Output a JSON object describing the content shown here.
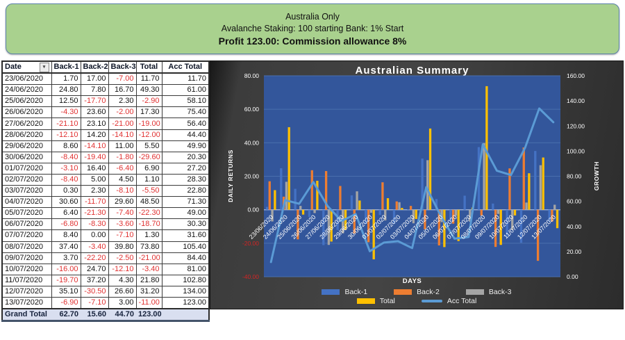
{
  "banner": {
    "line1": "Australia Only",
    "line2": "Avalanche Staking: 100 starting Bank: 1% Start",
    "line3": "Profit 123.00:  Commission allowance 8%"
  },
  "table": {
    "columns": [
      "Date",
      "Back-1",
      "Back-2",
      "Back-3",
      "Total",
      "Acc Total"
    ],
    "rows": [
      [
        "23/06/2020",
        "1.70",
        "17.00",
        "-7.00",
        "11.70",
        "11.70"
      ],
      [
        "24/06/2020",
        "24.80",
        "7.80",
        "16.70",
        "49.30",
        "61.00"
      ],
      [
        "25/06/2020",
        "12.50",
        "-17.70",
        "2.30",
        "-2.90",
        "58.10"
      ],
      [
        "26/06/2020",
        "-4.30",
        "23.60",
        "-2.00",
        "17.30",
        "75.40"
      ],
      [
        "27/06/2020",
        "-21.10",
        "23.10",
        "-21.00",
        "-19.00",
        "56.40"
      ],
      [
        "28/06/2020",
        "-12.10",
        "14.20",
        "-14.10",
        "-12.00",
        "44.40"
      ],
      [
        "29/06/2020",
        "8.60",
        "-14.10",
        "11.00",
        "5.50",
        "49.90"
      ],
      [
        "30/06/2020",
        "-8.40",
        "-19.40",
        "-1.80",
        "-29.60",
        "20.30"
      ],
      [
        "01/07/2020",
        "-3.10",
        "16.40",
        "-6.40",
        "6.90",
        "27.20"
      ],
      [
        "02/07/2020",
        "-8.40",
        "5.00",
        "4.50",
        "1.10",
        "28.30"
      ],
      [
        "03/07/2020",
        "0.30",
        "2.30",
        "-8.10",
        "-5.50",
        "22.80"
      ],
      [
        "04/07/2020",
        "30.60",
        "-11.70",
        "29.60",
        "48.50",
        "71.30"
      ],
      [
        "05/07/2020",
        "6.40",
        "-21.30",
        "-7.40",
        "-22.30",
        "49.00"
      ],
      [
        "06/07/2020",
        "-6.80",
        "-8.30",
        "-3.60",
        "-18.70",
        "30.30"
      ],
      [
        "07/07/2020",
        "8.40",
        "0.00",
        "-7.10",
        "1.30",
        "31.60"
      ],
      [
        "08/07/2020",
        "37.40",
        "-3.40",
        "39.80",
        "73.80",
        "105.40"
      ],
      [
        "09/07/2020",
        "3.70",
        "-22.20",
        "-2.50",
        "-21.00",
        "84.40"
      ],
      [
        "10/07/2020",
        "-16.00",
        "24.70",
        "-12.10",
        "-3.40",
        "81.00"
      ],
      [
        "11/07/2020",
        "-19.70",
        "37.20",
        "4.30",
        "21.80",
        "102.80"
      ],
      [
        "12/07/2020",
        "35.10",
        "-30.50",
        "26.60",
        "31.20",
        "134.00"
      ],
      [
        "13/07/2020",
        "-6.90",
        "-7.10",
        "3.00",
        "-11.00",
        "123.00"
      ]
    ],
    "grand_total": [
      "Grand Total",
      "62.70",
      "15.60",
      "44.70",
      "123.00",
      ""
    ],
    "negative_color": "#e03131",
    "grand_total_bg": "#d9dff0"
  },
  "chart_data": {
    "type": "bar",
    "title": "Australian Summary",
    "xlabel": "DAYS",
    "ylabel_left": "DAILY RETURNS",
    "ylabel_right": "GROWTH",
    "ylim_left": [
      -40,
      80
    ],
    "ylim_right": [
      0,
      160
    ],
    "tick_step": 20,
    "grid": true,
    "legend_position": "bottom",
    "plot_bg": "#33569B",
    "grid_color": "#4a6fad",
    "zero_line_color": "#9cb0d8",
    "tick_color": "#ffffff",
    "negative_tick_color": "#d32424",
    "categories": [
      "23/06/2020",
      "24/06/2020",
      "25/06/2020",
      "26/06/2020",
      "27/06/2020",
      "28/06/2020",
      "29/06/2020",
      "30/06/2020",
      "01/07/2020",
      "02/07/2020",
      "03/07/2020",
      "04/07/2020",
      "05/07/2020",
      "06/07/2020",
      "07/07/2020",
      "08/07/2020",
      "09/07/2020",
      "10/07/2020",
      "11/07/2020",
      "12/07/2020",
      "13/07/2020"
    ],
    "series": [
      {
        "name": "Back-1",
        "type": "bar",
        "axis": "left",
        "color": "#4472C4",
        "values": [
          1.7,
          24.8,
          12.5,
          -4.3,
          -21.1,
          -12.1,
          8.6,
          -8.4,
          -3.1,
          -8.4,
          0.3,
          30.6,
          6.4,
          -6.8,
          8.4,
          37.4,
          3.7,
          -16.0,
          -19.7,
          35.1,
          -6.9
        ]
      },
      {
        "name": "Back-2",
        "type": "bar",
        "axis": "left",
        "color": "#ED7D31",
        "values": [
          17.0,
          7.8,
          -17.7,
          23.6,
          23.1,
          14.2,
          -14.1,
          -19.4,
          16.4,
          5.0,
          2.3,
          -11.7,
          -21.3,
          -8.3,
          0.0,
          -3.4,
          -22.2,
          24.7,
          37.2,
          -30.5,
          -7.1
        ]
      },
      {
        "name": "Back-3",
        "type": "bar",
        "axis": "left",
        "color": "#A5A5A5",
        "values": [
          -7.0,
          16.7,
          2.3,
          -2.0,
          -21.0,
          -14.1,
          11.0,
          -1.8,
          -6.4,
          4.5,
          -8.1,
          29.6,
          -7.4,
          -3.6,
          -7.1,
          39.8,
          -2.5,
          -12.1,
          4.3,
          26.6,
          3.0
        ]
      },
      {
        "name": "Total",
        "type": "bar",
        "axis": "left",
        "color": "#FFC000",
        "values": [
          11.7,
          49.3,
          -2.9,
          17.3,
          -19.0,
          -12.0,
          5.5,
          -29.6,
          6.9,
          1.1,
          -5.5,
          48.5,
          -22.3,
          -18.7,
          1.3,
          73.8,
          -21.0,
          -3.4,
          21.8,
          31.2,
          -11.0
        ]
      },
      {
        "name": "Acc Total",
        "type": "line",
        "axis": "right",
        "color": "#5B9BD5",
        "values": [
          11.7,
          61.0,
          58.1,
          75.4,
          56.4,
          44.4,
          49.9,
          20.3,
          27.2,
          28.3,
          22.8,
          71.3,
          49.0,
          30.3,
          31.6,
          105.4,
          84.4,
          81.0,
          102.8,
          134.0,
          123.0
        ]
      }
    ],
    "legend_rows": [
      [
        "Back-1",
        "Back-2",
        "Back-3"
      ],
      [
        "Total",
        "Acc Total"
      ]
    ]
  }
}
